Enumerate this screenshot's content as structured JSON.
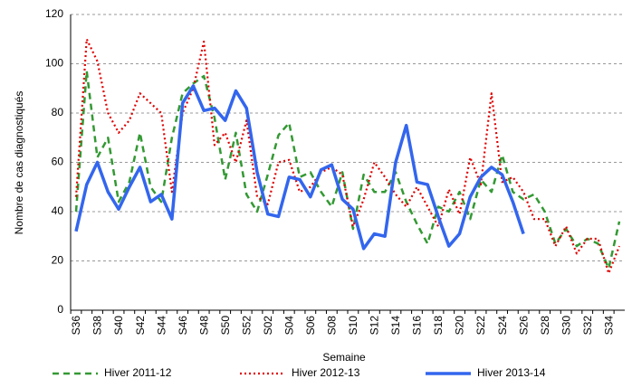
{
  "chart_data": {
    "type": "line",
    "y_label": "Nombre de cas diagnostiqués",
    "x_label": "Semaine",
    "categories": [
      "S36",
      null,
      "S38",
      null,
      "S40",
      null,
      "S42",
      null,
      "S44",
      null,
      "S46",
      null,
      "S48",
      null,
      "S50",
      null,
      "S52",
      null,
      "S02",
      null,
      "S04",
      null,
      "S06",
      null,
      "S08",
      null,
      "S10",
      null,
      "S12",
      null,
      "S14",
      null,
      "S16",
      null,
      "S18",
      null,
      "S20",
      null,
      "S22",
      null,
      "S24",
      null,
      "S26",
      null,
      "S28",
      null,
      "S30",
      null,
      "S32",
      null,
      "S34",
      null
    ],
    "ylim": [
      0,
      120
    ],
    "yticks": [
      0,
      20,
      40,
      60,
      80,
      100,
      120
    ],
    "grid": true,
    "series": [
      {
        "name": "Hiver 2011-12",
        "color": "#339933",
        "style": "dashed",
        "values": [
          40,
          97,
          62,
          70,
          44,
          52,
          72,
          50,
          44,
          70,
          88,
          92,
          95,
          78,
          53,
          72,
          47,
          40,
          55,
          71,
          76,
          54,
          56,
          48,
          42,
          56,
          33,
          55,
          48,
          48,
          56,
          44,
          35,
          27,
          42,
          40,
          48,
          37,
          53,
          48,
          63,
          48,
          45,
          47,
          40,
          27,
          33,
          26,
          29,
          27,
          17,
          36
        ]
      },
      {
        "name": "Hiver 2012-13",
        "color": "#e00000",
        "style": "dotted",
        "values": [
          46,
          110,
          101,
          80,
          72,
          77,
          88,
          84,
          80,
          48,
          80,
          90,
          109,
          67,
          72,
          60,
          77,
          46,
          43,
          60,
          61,
          48,
          50,
          56,
          58,
          55,
          34,
          45,
          60,
          54,
          47,
          42,
          50,
          42,
          34,
          49,
          39,
          62,
          51,
          88,
          52,
          54,
          48,
          37,
          37,
          26,
          34,
          23,
          29,
          29,
          15,
          26
        ]
      },
      {
        "name": "Hiver 2013-14",
        "color": "#3366ee",
        "style": "solid",
        "values": [
          32,
          51,
          60,
          48,
          41,
          50,
          58,
          44,
          47,
          37,
          84,
          91,
          81,
          82,
          77,
          89,
          82,
          56,
          39,
          38,
          54,
          53,
          46,
          57,
          59,
          45,
          41,
          25,
          31,
          30,
          60,
          75,
          52,
          51,
          38,
          26,
          31,
          46,
          54,
          58,
          55,
          44,
          31,
          null,
          null,
          null,
          null,
          null,
          null,
          null,
          null,
          null
        ]
      }
    ]
  }
}
